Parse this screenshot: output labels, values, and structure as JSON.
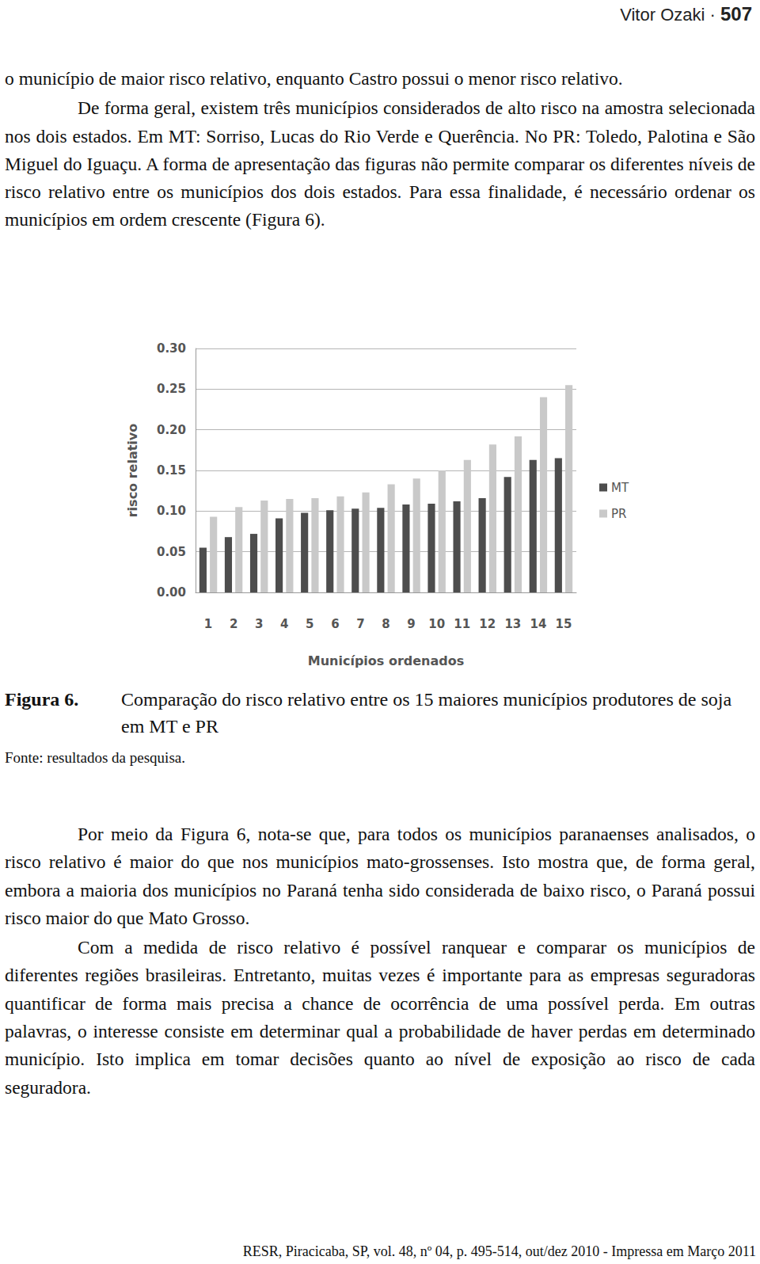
{
  "header": {
    "author": "Vitor Ozaki",
    "separator": "·",
    "page": "507"
  },
  "paragraphs_top": [
    {
      "indent": false,
      "text": "o município de maior risco relativo, enquanto Castro possui o menor risco relativo."
    },
    {
      "indent": true,
      "text": "De forma geral, existem três municípios considerados de alto risco na amostra selecionada nos dois estados. Em MT: Sorriso, Lucas do Rio Verde e Querência. No PR: Toledo, Palotina e São Miguel do Iguaçu. A forma de apresentação das figuras não permite comparar os diferentes níveis de risco relativo entre os municípios dos dois estados. Para essa finalidade, é necessário ordenar os municípios em ordem crescente (Figura 6)."
    }
  ],
  "chart_data": {
    "type": "bar",
    "x_label": "Municípios ordenados",
    "y_label": "risco relativo",
    "categories": [
      "1",
      "2",
      "3",
      "4",
      "5",
      "6",
      "7",
      "8",
      "9",
      "10",
      "11",
      "12",
      "13",
      "14",
      "15"
    ],
    "series": [
      {
        "name": "MT",
        "color": "#4d4d4d",
        "values": [
          0.055,
          0.068,
          0.072,
          0.091,
          0.098,
          0.101,
          0.103,
          0.104,
          0.108,
          0.109,
          0.112,
          0.116,
          0.142,
          0.163,
          0.165
        ]
      },
      {
        "name": "PR",
        "color": "#c9c9c9",
        "values": [
          0.093,
          0.105,
          0.113,
          0.115,
          0.116,
          0.118,
          0.123,
          0.133,
          0.14,
          0.15,
          0.163,
          0.182,
          0.192,
          0.24,
          0.255
        ]
      }
    ],
    "ylim": [
      0,
      0.3
    ],
    "yticks": [
      {
        "value": 0,
        "label": "0.00"
      },
      {
        "value": 0.05,
        "label": "0.05"
      },
      {
        "value": 0.1,
        "label": "0.10"
      },
      {
        "value": 0.15,
        "label": "0.15"
      },
      {
        "value": 0.2,
        "label": "0.20"
      },
      {
        "value": 0.25,
        "label": "0.25"
      },
      {
        "value": 0.3,
        "label": "0.30"
      }
    ],
    "grid": true,
    "legend": "right"
  },
  "caption": {
    "label": "Figura 6.",
    "text": "Comparação do risco relativo entre os 15 maiores municípios produtores de soja em MT e PR"
  },
  "source": "Fonte: resultados da pesquisa.",
  "paragraphs_bottom": [
    {
      "indent": true,
      "text": "Por meio da Figura 6, nota-se que, para todos os municípios paranaenses analisados, o risco relativo é maior do que nos municípios mato-grossenses. Isto mostra que, de forma geral, embora a maioria dos municípios no Paraná tenha sido considerada de baixo risco, o Paraná possui risco maior do que Mato Grosso."
    },
    {
      "indent": true,
      "text": "Com a medida de risco relativo é possível ranquear e comparar os municípios de diferentes regiões brasileiras. Entretanto, muitas vezes é importante para as empresas seguradoras quantificar de forma mais precisa a chance de ocorrência de uma possível perda. Em outras palavras, o interesse consiste em determinar qual a probabilidade de haver perdas em determinado município. Isto implica em tomar decisões quanto ao nível de exposição ao risco de cada seguradora."
    }
  ],
  "footer": "RESR, Piracicaba, SP, vol. 48, nº 04, p. 495-514, out/dez 2010 - Impressa em Março 2011"
}
